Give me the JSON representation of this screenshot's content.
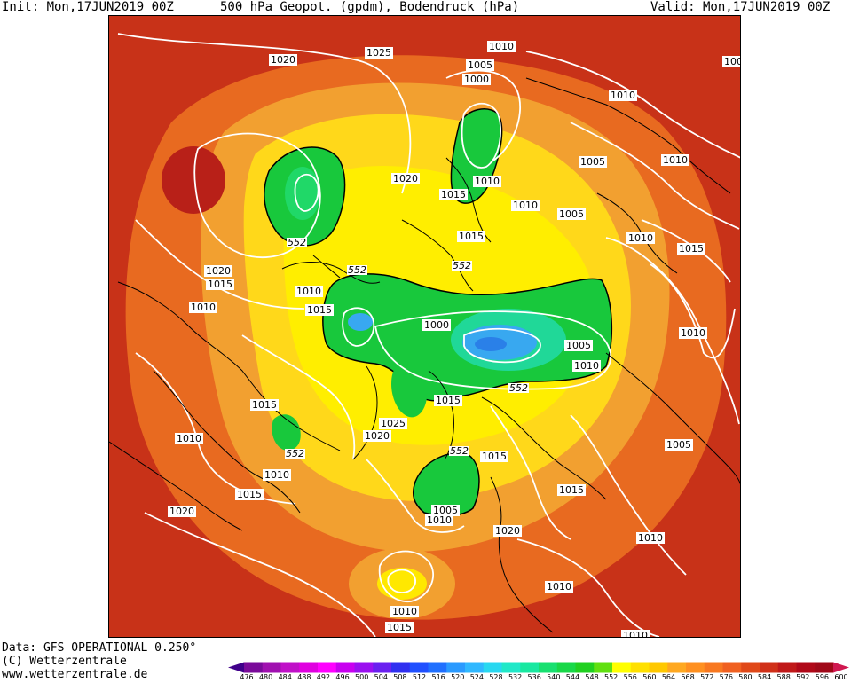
{
  "header": {
    "init": "Init: Mon,17JUN2019 00Z",
    "title": "500 hPa Geopot. (gpdm), Bodendruck (hPa)",
    "valid": "Valid: Mon,17JUN2019 00Z"
  },
  "footer": {
    "data": "Data: GFS OPERATIONAL 0.250°",
    "copyright": "(C) Wetterzentrale",
    "url": "www.wetterzentrale.de"
  },
  "colors": {
    "background_field": "#c83218",
    "ridge_warm": "#b82018",
    "orange": "#e86a20",
    "light_orange": "#f2a030",
    "yellow": "#ffe800",
    "green": "#18c83c",
    "teal": "#20d898",
    "blue": "#38a8f0",
    "isobar": "#ffffff"
  },
  "colorbar": {
    "ticks": [
      "476",
      "480",
      "484",
      "488",
      "492",
      "496",
      "500",
      "504",
      "508",
      "512",
      "516",
      "520",
      "524",
      "528",
      "532",
      "536",
      "540",
      "544",
      "548",
      "552",
      "556",
      "560",
      "564",
      "568",
      "572",
      "576",
      "580",
      "584",
      "588",
      "592",
      "596",
      "600"
    ],
    "colors": [
      "#40008a",
      "#7a0a9a",
      "#a010b0",
      "#c010c8",
      "#e000e0",
      "#ff00ff",
      "#c800f0",
      "#9a10f0",
      "#6a20f0",
      "#3030f0",
      "#2050ff",
      "#2070ff",
      "#2a9aff",
      "#30b8ff",
      "#28d8f0",
      "#20e8c8",
      "#18e8a0",
      "#18e070",
      "#18d848",
      "#20d020",
      "#60e010",
      "#ffff00",
      "#ffe000",
      "#ffc800",
      "#ffa820",
      "#ff9020",
      "#f87820",
      "#f06020",
      "#e04818",
      "#d03018",
      "#c01818",
      "#b00818",
      "#a00818",
      "#d01850"
    ]
  },
  "isobar_labels": [
    {
      "text": "1020",
      "id": "lbl-01"
    },
    {
      "text": "1025",
      "id": "lbl-02"
    },
    {
      "text": "1010",
      "id": "lbl-03"
    },
    {
      "text": "1005",
      "id": "lbl-04"
    },
    {
      "text": "1000",
      "id": "lbl-05"
    },
    {
      "text": "1010",
      "id": "lbl-06"
    },
    {
      "text": "100",
      "id": "lbl-07"
    },
    {
      "text": "1020",
      "id": "lbl-08"
    },
    {
      "text": "1015",
      "id": "lbl-09"
    },
    {
      "text": "1010",
      "id": "lbl-10"
    },
    {
      "text": "1005",
      "id": "lbl-11"
    },
    {
      "text": "1010",
      "id": "lbl-12"
    },
    {
      "text": "1010",
      "id": "lbl-13"
    },
    {
      "text": "1005",
      "id": "lbl-14"
    },
    {
      "text": "1015",
      "id": "lbl-15"
    },
    {
      "text": "1010",
      "id": "lbl-16"
    },
    {
      "text": "1015",
      "id": "lbl-17"
    },
    {
      "text": "1020",
      "id": "lbl-18"
    },
    {
      "text": "1015",
      "id": "lbl-19"
    },
    {
      "text": "1010",
      "id": "lbl-20"
    },
    {
      "text": "1010",
      "id": "lbl-21"
    },
    {
      "text": "1015",
      "id": "lbl-22"
    },
    {
      "text": "1000",
      "id": "lbl-23"
    },
    {
      "text": "1005",
      "id": "lbl-24"
    },
    {
      "text": "1010",
      "id": "lbl-25"
    },
    {
      "text": "1010",
      "id": "lbl-26"
    },
    {
      "text": "1015",
      "id": "lbl-27"
    },
    {
      "text": "1015",
      "id": "lbl-28"
    },
    {
      "text": "1025",
      "id": "lbl-29"
    },
    {
      "text": "1020",
      "id": "lbl-30"
    },
    {
      "text": "1010",
      "id": "lbl-31"
    },
    {
      "text": "1015",
      "id": "lbl-32"
    },
    {
      "text": "1010",
      "id": "lbl-33"
    },
    {
      "text": "1015",
      "id": "lbl-34"
    },
    {
      "text": "1005",
      "id": "lbl-35"
    },
    {
      "text": "1015",
      "id": "lbl-36"
    },
    {
      "text": "1005",
      "id": "lbl-37"
    },
    {
      "text": "1010",
      "id": "lbl-38"
    },
    {
      "text": "1020",
      "id": "lbl-39"
    },
    {
      "text": "1020",
      "id": "lbl-40"
    },
    {
      "text": "1010",
      "id": "lbl-41"
    },
    {
      "text": "1010",
      "id": "lbl-42"
    },
    {
      "text": "1010",
      "id": "lbl-43"
    },
    {
      "text": "1015",
      "id": "lbl-44"
    },
    {
      "text": "1010",
      "id": "lbl-45"
    },
    {
      "text": "1015",
      "id": "lbl-46"
    }
  ],
  "geopot_labels": [
    {
      "text": "552",
      "id": "geo-1"
    },
    {
      "text": "552",
      "id": "geo-2"
    },
    {
      "text": "552",
      "id": "geo-3"
    },
    {
      "text": "552",
      "id": "geo-4"
    },
    {
      "text": "552",
      "id": "geo-5"
    },
    {
      "text": "552",
      "id": "geo-6"
    }
  ]
}
